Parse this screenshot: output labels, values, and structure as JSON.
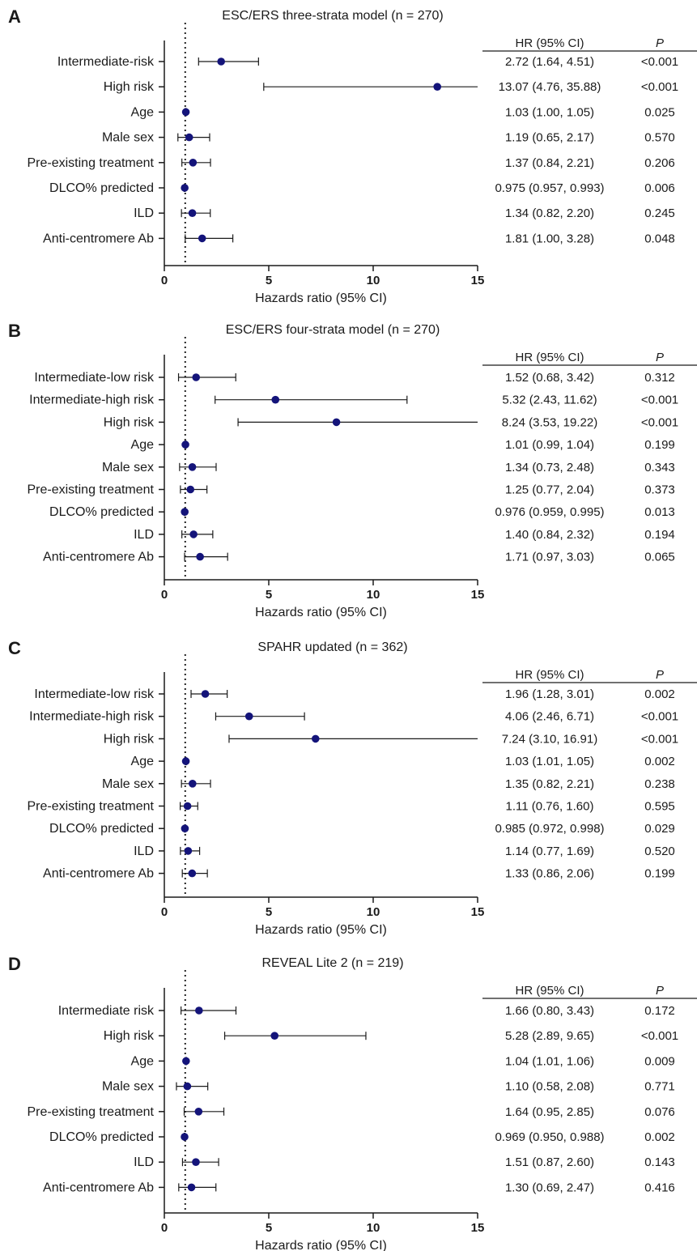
{
  "figure": {
    "colors": {
      "point": "#14147a",
      "axis": "#1a1a1a",
      "ref_line": "#222222",
      "text": "#1a1a1a"
    },
    "table_headers": {
      "hr": "HR (95% CI)",
      "p": "P"
    }
  },
  "chart_data": [
    {
      "type": "forest",
      "panel_label": "A",
      "title": "ESC/ERS three-strata model (n = 270)",
      "xlabel": "Hazards ratio (95% CI)",
      "ylabel": "",
      "xlim": [
        0,
        15
      ],
      "xticks": [
        0,
        5,
        10,
        15
      ],
      "reference_line": 1,
      "grid": false,
      "rows": [
        {
          "label": "Intermediate-risk",
          "hr": 2.72,
          "lo": 1.64,
          "hi": 4.51,
          "hr_text": "2.72 (1.64, 4.51)",
          "p": "<0.001"
        },
        {
          "label": "High risk",
          "hr": 13.07,
          "lo": 4.76,
          "hi": 35.88,
          "hr_text": "13.07 (4.76, 35.88)",
          "p": "<0.001"
        },
        {
          "label": "Age",
          "hr": 1.03,
          "lo": 1.0,
          "hi": 1.05,
          "hr_text": "1.03 (1.00, 1.05)",
          "p": "0.025"
        },
        {
          "label": "Male sex",
          "hr": 1.19,
          "lo": 0.65,
          "hi": 2.17,
          "hr_text": "1.19 (0.65, 2.17)",
          "p": "0.570"
        },
        {
          "label": "Pre-existing treatment",
          "hr": 1.37,
          "lo": 0.84,
          "hi": 2.21,
          "hr_text": "1.37 (0.84, 2.21)",
          "p": "0.206"
        },
        {
          "label": "DLCO% predicted",
          "hr": 0.975,
          "lo": 0.957,
          "hi": 0.993,
          "hr_text": "0.975 (0.957, 0.993)",
          "p": "0.006"
        },
        {
          "label": "ILD",
          "hr": 1.34,
          "lo": 0.82,
          "hi": 2.2,
          "hr_text": "1.34 (0.82, 2.20)",
          "p": "0.245"
        },
        {
          "label": "Anti-centromere Ab",
          "hr": 1.81,
          "lo": 1.0,
          "hi": 3.28,
          "hr_text": "1.81 (1.00, 3.28)",
          "p": "0.048"
        }
      ]
    },
    {
      "type": "forest",
      "panel_label": "B",
      "title": "ESC/ERS four-strata model (n = 270)",
      "xlabel": "Hazards ratio (95% CI)",
      "ylabel": "",
      "xlim": [
        0,
        15
      ],
      "xticks": [
        0,
        5,
        10,
        15
      ],
      "reference_line": 1,
      "grid": false,
      "rows": [
        {
          "label": "Intermediate-low risk",
          "hr": 1.52,
          "lo": 0.68,
          "hi": 3.42,
          "hr_text": "1.52 (0.68, 3.42)",
          "p": "0.312"
        },
        {
          "label": "Intermediate-high risk",
          "hr": 5.32,
          "lo": 2.43,
          "hi": 11.62,
          "hr_text": "5.32 (2.43, 11.62)",
          "p": "<0.001"
        },
        {
          "label": "High risk",
          "hr": 8.24,
          "lo": 3.53,
          "hi": 19.22,
          "hr_text": "8.24 (3.53, 19.22)",
          "p": "<0.001"
        },
        {
          "label": "Age",
          "hr": 1.01,
          "lo": 0.99,
          "hi": 1.04,
          "hr_text": "1.01 (0.99, 1.04)",
          "p": "0.199"
        },
        {
          "label": "Male sex",
          "hr": 1.34,
          "lo": 0.73,
          "hi": 2.48,
          "hr_text": "1.34 (0.73, 2.48)",
          "p": "0.343"
        },
        {
          "label": "Pre-existing treatment",
          "hr": 1.25,
          "lo": 0.77,
          "hi": 2.04,
          "hr_text": "1.25 (0.77, 2.04)",
          "p": "0.373"
        },
        {
          "label": "DLCO% predicted",
          "hr": 0.976,
          "lo": 0.959,
          "hi": 0.995,
          "hr_text": "0.976 (0.959, 0.995)",
          "p": "0.013"
        },
        {
          "label": "ILD",
          "hr": 1.4,
          "lo": 0.84,
          "hi": 2.32,
          "hr_text": "1.40 (0.84, 2.32)",
          "p": "0.194"
        },
        {
          "label": "Anti-centromere Ab",
          "hr": 1.71,
          "lo": 0.97,
          "hi": 3.03,
          "hr_text": "1.71 (0.97, 3.03)",
          "p": "0.065"
        }
      ]
    },
    {
      "type": "forest",
      "panel_label": "C",
      "title": "SPAHR updated (n = 362)",
      "xlabel": "Hazards ratio (95% CI)",
      "ylabel": "",
      "xlim": [
        0,
        15
      ],
      "xticks": [
        0,
        5,
        10,
        15
      ],
      "reference_line": 1,
      "grid": false,
      "rows": [
        {
          "label": "Intermediate-low risk",
          "hr": 1.96,
          "lo": 1.28,
          "hi": 3.01,
          "hr_text": "1.96 (1.28, 3.01)",
          "p": "0.002"
        },
        {
          "label": "Intermediate-high risk",
          "hr": 4.06,
          "lo": 2.46,
          "hi": 6.71,
          "hr_text": "4.06 (2.46, 6.71)",
          "p": "<0.001"
        },
        {
          "label": "High risk",
          "hr": 7.24,
          "lo": 3.1,
          "hi": 16.91,
          "hr_text": "7.24 (3.10, 16.91)",
          "p": "<0.001"
        },
        {
          "label": "Age",
          "hr": 1.03,
          "lo": 1.01,
          "hi": 1.05,
          "hr_text": "1.03 (1.01, 1.05)",
          "p": "0.002"
        },
        {
          "label": "Male sex",
          "hr": 1.35,
          "lo": 0.82,
          "hi": 2.21,
          "hr_text": "1.35 (0.82, 2.21)",
          "p": "0.238"
        },
        {
          "label": "Pre-existing treatment",
          "hr": 1.11,
          "lo": 0.76,
          "hi": 1.6,
          "hr_text": "1.11 (0.76, 1.60)",
          "p": "0.595"
        },
        {
          "label": "DLCO% predicted",
          "hr": 0.985,
          "lo": 0.972,
          "hi": 0.998,
          "hr_text": "0.985 (0.972, 0.998)",
          "p": "0.029"
        },
        {
          "label": "ILD",
          "hr": 1.14,
          "lo": 0.77,
          "hi": 1.69,
          "hr_text": "1.14 (0.77, 1.69)",
          "p": "0.520"
        },
        {
          "label": "Anti-centromere Ab",
          "hr": 1.33,
          "lo": 0.86,
          "hi": 2.06,
          "hr_text": "1.33 (0.86, 2.06)",
          "p": "0.199"
        }
      ]
    },
    {
      "type": "forest",
      "panel_label": "D",
      "title": "REVEAL Lite 2 (n = 219)",
      "xlabel": "Hazards ratio (95% CI)",
      "ylabel": "",
      "xlim": [
        0,
        15
      ],
      "xticks": [
        0,
        5,
        10,
        15
      ],
      "reference_line": 1,
      "grid": false,
      "rows": [
        {
          "label": "Intermediate risk",
          "hr": 1.66,
          "lo": 0.8,
          "hi": 3.43,
          "hr_text": "1.66 (0.80, 3.43)",
          "p": "0.172"
        },
        {
          "label": "High risk",
          "hr": 5.28,
          "lo": 2.89,
          "hi": 9.65,
          "hr_text": "5.28 (2.89, 9.65)",
          "p": "<0.001"
        },
        {
          "label": "Age",
          "hr": 1.04,
          "lo": 1.01,
          "hi": 1.06,
          "hr_text": "1.04 (1.01, 1.06)",
          "p": "0.009"
        },
        {
          "label": "Male sex",
          "hr": 1.1,
          "lo": 0.58,
          "hi": 2.08,
          "hr_text": "1.10 (0.58, 2.08)",
          "p": "0.771"
        },
        {
          "label": "Pre-existing treatment",
          "hr": 1.64,
          "lo": 0.95,
          "hi": 2.85,
          "hr_text": "1.64 (0.95, 2.85)",
          "p": "0.076"
        },
        {
          "label": "DLCO% predicted",
          "hr": 0.969,
          "lo": 0.95,
          "hi": 0.988,
          "hr_text": "0.969 (0.950, 0.988)",
          "p": "0.002"
        },
        {
          "label": "ILD",
          "hr": 1.51,
          "lo": 0.87,
          "hi": 2.6,
          "hr_text": "1.51 (0.87, 2.60)",
          "p": "0.143"
        },
        {
          "label": "Anti-centromere Ab",
          "hr": 1.3,
          "lo": 0.69,
          "hi": 2.47,
          "hr_text": "1.30 (0.69, 2.47)",
          "p": "0.416"
        }
      ]
    }
  ]
}
